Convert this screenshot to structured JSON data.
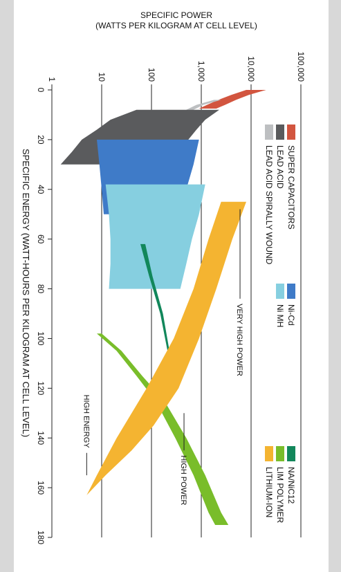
{
  "chart_data": {
    "type": "area",
    "orientation": "rotated-90-clockwise",
    "xlabel": "SPECIFIC ENERGY (WATT-HOURS PER KILOGRAM AT CELL LEVEL)",
    "ylabel_line1": "SPECIFIC POWER",
    "ylabel_line2": "(WATTS PER KILOGRAM AT CELL LEVEL)",
    "x_ticks": [
      "0",
      "20",
      "40",
      "60",
      "80",
      "100",
      "120",
      "140",
      "160",
      "180"
    ],
    "x_tick_values": [
      0,
      20,
      40,
      60,
      80,
      100,
      120,
      140,
      160,
      180
    ],
    "y_scale": "log",
    "y_ticks": [
      "1",
      "10",
      "100",
      "1,000",
      "10,000",
      "100,000"
    ],
    "y_tick_values": [
      1,
      10,
      100,
      1000,
      10000,
      100000
    ],
    "xlim": [
      0,
      180
    ],
    "ylim": [
      1,
      100000
    ],
    "grid": "horizontal at power decades",
    "legend_placement": "top",
    "legend": [
      {
        "label": "SUPER CAPACITORS",
        "color": "#d2553f"
      },
      {
        "label": "LEAD ACID",
        "color": "#5a5b5d"
      },
      {
        "label": "LEAD ACID SPIRALLY WOUND",
        "color": "#bdbfc1"
      },
      {
        "label": "Ni-Cd",
        "color": "#3f7bc8"
      },
      {
        "label": "Ni MH",
        "color": "#86cfe0"
      },
      {
        "label": "NA/NiC12",
        "color": "#12875b"
      },
      {
        "label": "LIM POLYMER",
        "color": "#79bd2a"
      },
      {
        "label": "LITHIUM-ION",
        "color": "#f4b431"
      }
    ],
    "series": [
      {
        "color": "#d2553f",
        "upper": [
          [
            0,
            20000
          ],
          [
            2,
            9000
          ],
          [
            4,
            5000
          ],
          [
            6,
            3000
          ],
          [
            7.5,
            2000
          ]
        ],
        "lower": [
          [
            0,
            8000
          ],
          [
            2,
            4000
          ],
          [
            4,
            2200
          ],
          [
            6,
            1300
          ],
          [
            7.5,
            900
          ]
        ]
      },
      {
        "color": "#bdbfc1",
        "upper": [
          [
            4,
            2500
          ],
          [
            6,
            1100
          ],
          [
            8,
            700
          ],
          [
            10,
            520
          ],
          [
            13,
            430
          ],
          [
            18,
            360
          ],
          [
            20,
            330
          ]
        ],
        "lower": [
          [
            4,
            1800
          ],
          [
            6,
            800
          ],
          [
            8,
            500
          ],
          [
            10,
            380
          ],
          [
            13,
            300
          ],
          [
            18,
            250
          ],
          [
            20,
            230
          ]
        ]
      },
      {
        "color": "#5a5b5d",
        "upper": [
          [
            8,
            2300
          ],
          [
            12,
            1200
          ],
          [
            16,
            800
          ],
          [
            20,
            550
          ],
          [
            25,
            420
          ],
          [
            30,
            360
          ]
        ],
        "lower": [
          [
            8,
            50
          ],
          [
            12,
            15
          ],
          [
            16,
            8
          ],
          [
            20,
            4
          ],
          [
            25,
            2.5
          ],
          [
            30,
            1.5
          ]
        ]
      },
      {
        "color": "#3f7bc8",
        "upper": [
          [
            20,
            900
          ],
          [
            30,
            700
          ],
          [
            40,
            500
          ],
          [
            50,
            400
          ]
        ],
        "lower": [
          [
            20,
            8
          ],
          [
            30,
            9
          ],
          [
            40,
            10
          ],
          [
            50,
            11
          ]
        ]
      },
      {
        "color": "#86cfe0",
        "upper": [
          [
            38,
            1200
          ],
          [
            50,
            900
          ],
          [
            60,
            650
          ],
          [
            70,
            500
          ],
          [
            80,
            380
          ]
        ],
        "lower": [
          [
            38,
            12
          ],
          [
            50,
            14
          ],
          [
            60,
            15
          ],
          [
            70,
            15
          ],
          [
            80,
            14
          ]
        ]
      },
      {
        "color": "#12875b",
        "upper": [
          [
            62,
            60
          ],
          [
            75,
            90
          ],
          [
            90,
            150
          ],
          [
            105,
            210
          ],
          [
            118,
            250
          ]
        ],
        "lower": [
          [
            62,
            75
          ],
          [
            75,
            105
          ],
          [
            90,
            170
          ],
          [
            105,
            230
          ],
          [
            118,
            260
          ]
        ]
      },
      {
        "color": "#79bd2a",
        "upper": [
          [
            98,
            8
          ],
          [
            105,
            20
          ],
          [
            115,
            50
          ],
          [
            125,
            120
          ],
          [
            140,
            300
          ],
          [
            155,
            700
          ],
          [
            170,
            1400
          ],
          [
            175,
            1900
          ]
        ],
        "lower": [
          [
            98,
            10
          ],
          [
            105,
            25
          ],
          [
            115,
            65
          ],
          [
            125,
            180
          ],
          [
            140,
            500
          ],
          [
            155,
            1200
          ],
          [
            170,
            2500
          ],
          [
            175,
            3500
          ]
        ]
      },
      {
        "color": "#f4b431",
        "upper": [
          [
            45,
            8000
          ],
          [
            60,
            4200
          ],
          [
            80,
            2000
          ],
          [
            100,
            900
          ],
          [
            120,
            350
          ],
          [
            135,
            110
          ],
          [
            145,
            40
          ],
          [
            155,
            12
          ],
          [
            163,
            5
          ],
          [
            172,
            3
          ]
        ],
        "lower": [
          [
            45,
            2500
          ],
          [
            60,
            1400
          ],
          [
            80,
            700
          ],
          [
            100,
            280
          ],
          [
            120,
            80
          ],
          [
            140,
            20
          ],
          [
            155,
            8
          ],
          [
            163,
            5
          ],
          [
            172,
            3
          ]
        ]
      }
    ],
    "annotations": [
      "VERY HIGH POWER",
      "HIGH POWER",
      "HIGH ENERGY"
    ]
  }
}
